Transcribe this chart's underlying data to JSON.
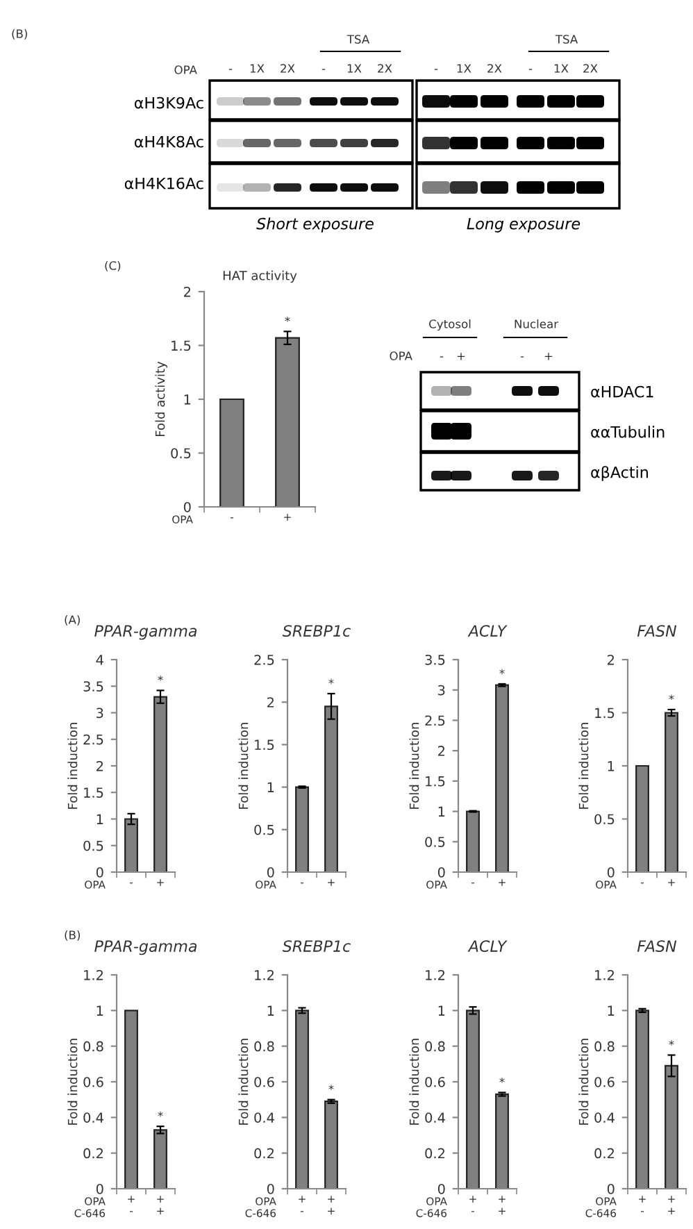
{
  "chart_data": [
    {
      "type": "other",
      "annotations": [
        "(B)",
        "OPA",
        "TSA",
        "TSA",
        "-",
        "1X",
        "2X",
        "-",
        "1X",
        "2X",
        "-",
        "1X",
        "2X",
        "-",
        "1X",
        "2X",
        "αH3K9Ac",
        "αH4K8Ac",
        "αH4K16Ac",
        "Short exposure",
        "Long exposure"
      ]
    },
    {
      "type": "bar",
      "title": "HAT activity",
      "ylabel": "Fold activity",
      "xlabel": "OPA",
      "categories": [
        "-",
        "+"
      ],
      "values": [
        1,
        1.57
      ],
      "errors": [
        null,
        0.06
      ],
      "color": "#808080",
      "ylim": [
        0,
        2
      ],
      "yticks": [
        0,
        0.5,
        1,
        1.5,
        2
      ],
      "grid": false,
      "annotations": [
        "(C)",
        {
          "text": "*",
          "x": "+",
          "y": 1.63
        }
      ]
    },
    {
      "type": "other",
      "annotations": [
        "Cytosol",
        "Nuclear",
        "OPA",
        "-",
        "+",
        "-",
        "+",
        "αHDAC1",
        "ααTubulin",
        "αβActin"
      ]
    },
    {
      "type": "bar",
      "title": "PPAR-gamma",
      "ylabel": "Fold induction",
      "xlabel": "OPA",
      "categories": [
        "-",
        "+"
      ],
      "values": [
        1,
        3.3
      ],
      "errors": [
        0.1,
        0.12
      ],
      "color": "#808080",
      "ylim": [
        0,
        4
      ],
      "yticks": [
        0,
        0.5,
        1,
        1.5,
        2,
        2.5,
        3,
        3.5,
        4
      ],
      "grid": false,
      "annotations": [
        "(A)",
        {
          "text": "*",
          "x": "+",
          "y": 3.42
        }
      ]
    },
    {
      "type": "bar",
      "title": "SREBP1c",
      "ylabel": "Fold induction",
      "xlabel": "OPA",
      "categories": [
        "-",
        "+"
      ],
      "values": [
        1,
        1.95
      ],
      "errors": [
        0.01,
        0.15
      ],
      "color": "#808080",
      "ylim": [
        0,
        2.5
      ],
      "yticks": [
        0,
        0.5,
        1,
        1.5,
        2,
        2.5
      ],
      "grid": false,
      "annotations": [
        {
          "text": "*",
          "x": "+",
          "y": 2.1
        }
      ]
    },
    {
      "type": "bar",
      "title": "ACLY",
      "ylabel": "Fold induction",
      "xlabel": "OPA",
      "categories": [
        "-",
        "+"
      ],
      "values": [
        1,
        3.08
      ],
      "errors": [
        0.01,
        0.02
      ],
      "color": "#808080",
      "ylim": [
        0,
        3.5
      ],
      "yticks": [
        0,
        0.5,
        1,
        1.5,
        2,
        2.5,
        3,
        3.5
      ],
      "grid": false,
      "annotations": [
        {
          "text": "*",
          "x": "+",
          "y": 3.1
        }
      ]
    },
    {
      "type": "bar",
      "title": "FASN",
      "ylabel": "Fold induction",
      "xlabel": "OPA",
      "categories": [
        "-",
        "+"
      ],
      "values": [
        1,
        1.5
      ],
      "errors": [
        null,
        0.03
      ],
      "color": "#808080",
      "ylim": [
        0,
        2
      ],
      "yticks": [
        0,
        0.5,
        1,
        1.5,
        2
      ],
      "grid": false,
      "annotations": [
        {
          "text": "*",
          "x": "+",
          "y": 1.53
        }
      ]
    },
    {
      "type": "bar",
      "title": "PPAR-gamma",
      "ylabel": "Fold induction",
      "xlabel": "OPA\nC-646",
      "categories": [
        "+\n-",
        "+\n+"
      ],
      "values": [
        1,
        0.33
      ],
      "errors": [
        null,
        0.02
      ],
      "color": "#808080",
      "ylim": [
        0,
        1.2
      ],
      "yticks": [
        0,
        0.2,
        0.4,
        0.6,
        0.8,
        1,
        1.2
      ],
      "grid": false,
      "annotations": [
        "(B)",
        {
          "text": "*",
          "x": "+\n+",
          "y": 0.35
        }
      ]
    },
    {
      "type": "bar",
      "title": "SREBP1c",
      "ylabel": "Fold induction",
      "xlabel": "OPA\nC-646",
      "categories": [
        "+\n-",
        "+\n+"
      ],
      "values": [
        1,
        0.49
      ],
      "errors": [
        0.015,
        0.01
      ],
      "color": "#808080",
      "ylim": [
        0,
        1.2
      ],
      "yticks": [
        0,
        0.2,
        0.4,
        0.6,
        0.8,
        1,
        1.2
      ],
      "grid": false,
      "annotations": [
        {
          "text": "*",
          "x": "+\n+",
          "y": 0.5
        }
      ]
    },
    {
      "type": "bar",
      "title": "ACLY",
      "ylabel": "Fold induction",
      "xlabel": "OPA\nC-646",
      "categories": [
        "+\n-",
        "+\n+"
      ],
      "values": [
        1,
        0.53
      ],
      "errors": [
        0.02,
        0.01
      ],
      "color": "#808080",
      "ylim": [
        0,
        1.2
      ],
      "yticks": [
        0,
        0.2,
        0.4,
        0.6,
        0.8,
        1,
        1.2
      ],
      "grid": false,
      "annotations": [
        {
          "text": "*",
          "x": "+\n+",
          "y": 0.54
        }
      ]
    },
    {
      "type": "bar",
      "title": "FASN",
      "ylabel": "Fold induction",
      "xlabel": "OPA\nC-646",
      "categories": [
        "+\n-",
        "+\n+"
      ],
      "values": [
        1,
        0.69
      ],
      "errors": [
        0.01,
        0.06
      ],
      "color": "#808080",
      "ylim": [
        0,
        1.2
      ],
      "yticks": [
        0,
        0.2,
        0.4,
        0.6,
        0.8,
        1,
        1.2
      ],
      "grid": false,
      "annotations": [
        {
          "text": "*",
          "x": "+\n+",
          "y": 0.75
        }
      ]
    }
  ]
}
